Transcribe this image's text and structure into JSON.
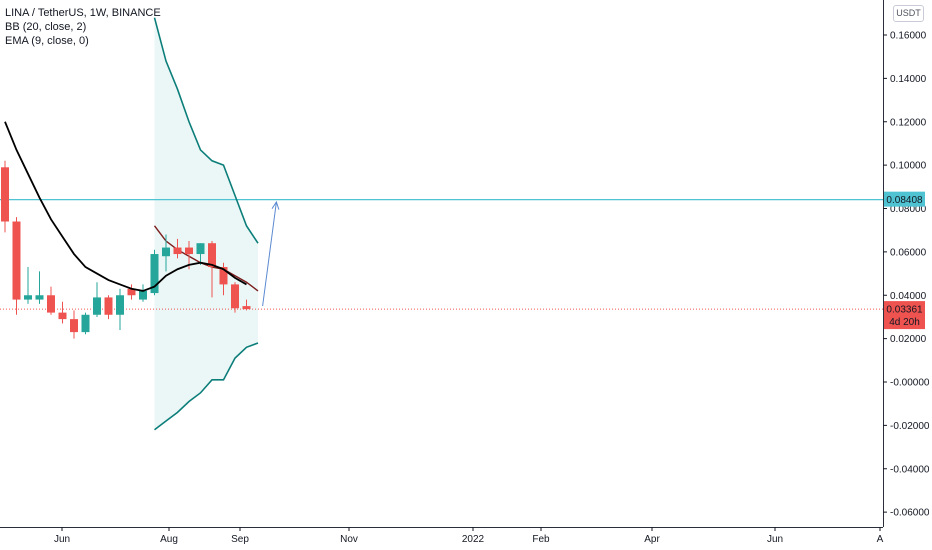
{
  "header": {
    "symbol_line": "LINA / TetherUS, 1W, BINANCE",
    "bb_line": "BB (20, close, 2)",
    "ema_line": "EMA (9, close, 0)",
    "currency": "USDT"
  },
  "colors": {
    "up": "#26a69a",
    "down": "#ef5350",
    "bb_band": "#0c7e7a",
    "bb_basis": "#7b1c1c",
    "bb_fill": "#ebf7f6",
    "ema": "#000000",
    "hline": "#4fc3d1",
    "arrow": "#5b8ad1",
    "current_price_line": "#ef5350"
  },
  "chart_data": {
    "type": "candlestick",
    "x_labels": [
      "Jun",
      "Aug",
      "Sep",
      "Nov",
      "2022",
      "Feb",
      "Apr",
      "Jun",
      "A"
    ],
    "y_ticks": [
      0.16,
      0.14,
      0.12,
      0.1,
      0.08,
      0.06,
      0.04,
      0.02,
      0.0,
      -0.02,
      -0.04,
      -0.06
    ],
    "y_tick_labels": [
      "0.16000",
      "0.14000",
      "0.12000",
      "0.10000",
      "0.08000",
      "0.06000",
      "0.04000",
      "0.02000",
      "-0.00000",
      "-0.02000",
      "-0.04000",
      "-0.06000"
    ],
    "ylim": [
      -0.066,
      0.172
    ],
    "candles": [
      {
        "open": 0.099,
        "high": 0.102,
        "low": 0.069,
        "close": 0.074
      },
      {
        "open": 0.074,
        "high": 0.076,
        "low": 0.031,
        "close": 0.038
      },
      {
        "open": 0.038,
        "high": 0.053,
        "low": 0.036,
        "close": 0.04
      },
      {
        "open": 0.038,
        "high": 0.051,
        "low": 0.036,
        "close": 0.04
      },
      {
        "open": 0.04,
        "high": 0.044,
        "low": 0.031,
        "close": 0.032
      },
      {
        "open": 0.032,
        "high": 0.037,
        "low": 0.027,
        "close": 0.029
      },
      {
        "open": 0.029,
        "high": 0.033,
        "low": 0.02,
        "close": 0.023
      },
      {
        "open": 0.023,
        "high": 0.032,
        "low": 0.022,
        "close": 0.031
      },
      {
        "open": 0.031,
        "high": 0.046,
        "low": 0.03,
        "close": 0.039
      },
      {
        "open": 0.039,
        "high": 0.04,
        "low": 0.029,
        "close": 0.031
      },
      {
        "open": 0.031,
        "high": 0.043,
        "low": 0.024,
        "close": 0.04
      },
      {
        "open": 0.043,
        "high": 0.045,
        "low": 0.038,
        "close": 0.04
      },
      {
        "open": 0.038,
        "high": 0.045,
        "low": 0.037,
        "close": 0.042
      },
      {
        "open": 0.041,
        "high": 0.061,
        "low": 0.04,
        "close": 0.059
      },
      {
        "open": 0.058,
        "high": 0.068,
        "low": 0.051,
        "close": 0.062
      },
      {
        "open": 0.062,
        "high": 0.066,
        "low": 0.057,
        "close": 0.059
      },
      {
        "open": 0.062,
        "high": 0.065,
        "low": 0.052,
        "close": 0.059
      },
      {
        "open": 0.059,
        "high": 0.064,
        "low": 0.054,
        "close": 0.064
      },
      {
        "open": 0.064,
        "high": 0.065,
        "low": 0.039,
        "close": 0.053
      },
      {
        "open": 0.053,
        "high": 0.055,
        "low": 0.04,
        "close": 0.045
      },
      {
        "open": 0.045,
        "high": 0.046,
        "low": 0.032,
        "close": 0.034
      },
      {
        "open": 0.035,
        "high": 0.038,
        "low": 0.033,
        "close": 0.0336
      }
    ],
    "ema": [
      0.12,
      0.107,
      0.096,
      0.085,
      0.075,
      0.067,
      0.059,
      0.053,
      0.05,
      0.047,
      0.045,
      0.043,
      0.042,
      0.044,
      0.049,
      0.052,
      0.054,
      0.055,
      0.054,
      0.052,
      0.048,
      0.045
    ],
    "bb": {
      "start_index": 13,
      "upper": [
        0.168,
        0.148,
        0.135,
        0.12,
        0.107,
        0.102,
        0.1,
        0.086,
        0.072,
        0.064
      ],
      "basis": [
        0.072,
        0.065,
        0.061,
        0.058,
        0.055,
        0.053,
        0.052,
        0.049,
        0.046,
        0.042
      ],
      "lower": [
        -0.022,
        -0.018,
        -0.014,
        -0.009,
        -0.005,
        0.001,
        0.001,
        0.011,
        0.016,
        0.018
      ]
    },
    "horizontal_line": 0.08408,
    "current_price_label": "0.03361",
    "current_price": 0.03361,
    "countdown": "4d 20h",
    "level_label": "0.08408",
    "arrow": {
      "from": [
        22.4,
        0.035
      ],
      "to": [
        23.6,
        0.083
      ]
    }
  }
}
